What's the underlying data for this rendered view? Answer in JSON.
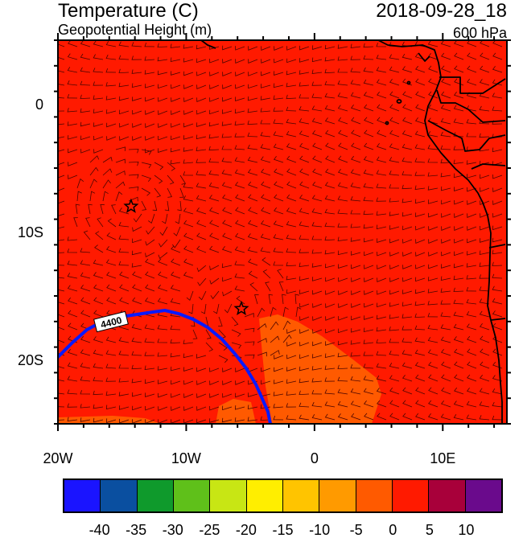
{
  "header": {
    "title": "Temperature (C)",
    "subtitle": "Geopotential Height (m)",
    "datetime": "2018-09-28_18",
    "level": "600 hPa"
  },
  "map": {
    "lon_range": [
      -20,
      15
    ],
    "lat_range": [
      -25,
      5
    ],
    "y_ticks": [
      {
        "lat": 0,
        "label": "0"
      },
      {
        "lat": -10,
        "label": "10S"
      },
      {
        "lat": -20,
        "label": "20S"
      }
    ],
    "x_ticks": [
      {
        "lon": -20,
        "label": "20W"
      },
      {
        "lon": -10,
        "label": "10W"
      },
      {
        "lon": 0,
        "label": "0"
      },
      {
        "lon": 10,
        "label": "10E"
      }
    ],
    "background_color": "#ff1a00",
    "warm_region_color": "#ff5a00",
    "contour": {
      "label": "4400",
      "color": "#0a1aff"
    },
    "star_markers": [
      {
        "lon": -14.3,
        "lat": -8.0
      },
      {
        "lon": -5.7,
        "lat": -16.0
      }
    ],
    "coast_color": "#000000"
  },
  "colorbar": {
    "colors": [
      "#1a14ff",
      "#0a4fa0",
      "#0f9a2c",
      "#5fc01a",
      "#c8e614",
      "#ffee00",
      "#ffc400",
      "#ff9a00",
      "#ff5a00",
      "#ff1a00",
      "#a8003a",
      "#6a0a8c"
    ],
    "labels": [
      "-40",
      "-35",
      "-30",
      "-25",
      "-20",
      "-15",
      "-10",
      "-5",
      "0",
      "5",
      "10"
    ]
  }
}
